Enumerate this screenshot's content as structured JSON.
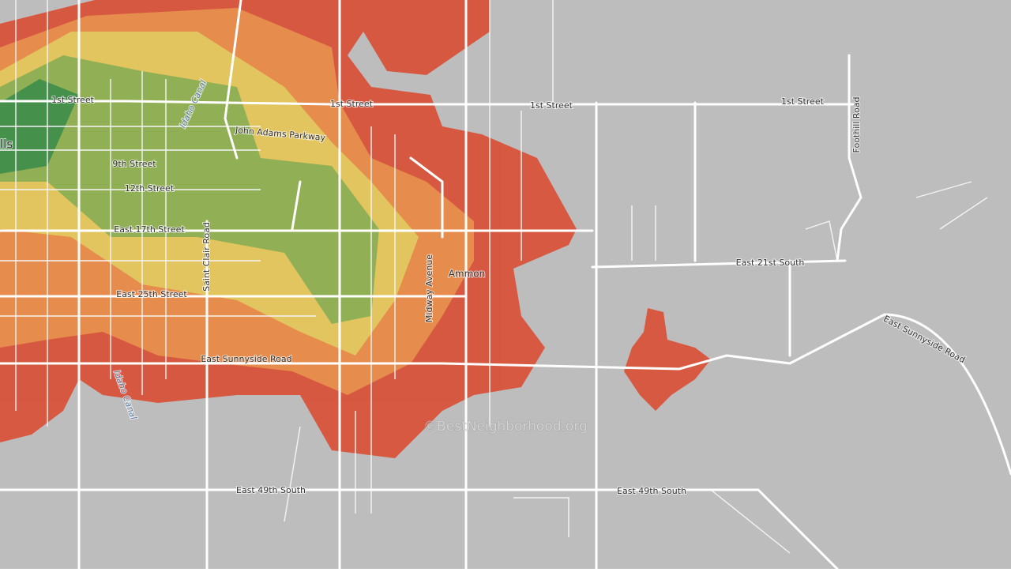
{
  "map": {
    "partial_city": "lls",
    "labels": [
      "1st Street",
      "1st Street",
      "1st Street",
      "1st Street",
      "John Adams Parkway",
      "9th Street",
      "12th Street",
      "East 17th Street",
      "Saint Clair Road",
      "Idaho Canal",
      "East 25th Street",
      "East Sunnyside Road",
      "Idaho Canal",
      "Midway Avenue",
      "Ammon",
      "East 21st South",
      "Foothill Road",
      "East Sunnyside Road",
      "East 49th South",
      "East 49th South"
    ],
    "watermark": "©BestNeighborhood.org"
  }
}
